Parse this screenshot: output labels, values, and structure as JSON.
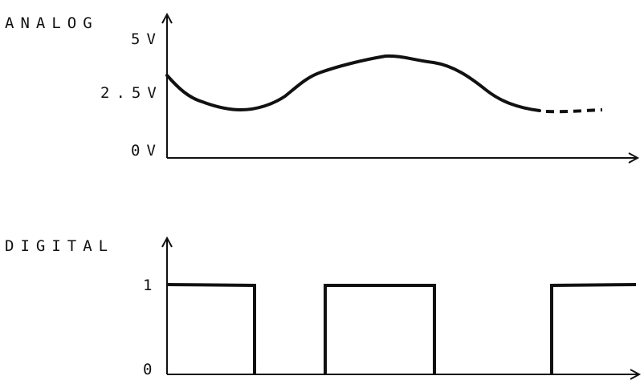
{
  "analog": {
    "title": "ANALOG",
    "tick_labels": [
      "5V",
      "2.5V",
      "0V"
    ]
  },
  "digital": {
    "title": "DIGITAL",
    "tick_labels": [
      "1",
      "0"
    ],
    "levels": [
      1,
      0,
      1,
      0,
      1
    ],
    "level_labels": [
      "1",
      "0"
    ]
  },
  "colors": {
    "ink": "#111111",
    "background": "#ffffff"
  }
}
